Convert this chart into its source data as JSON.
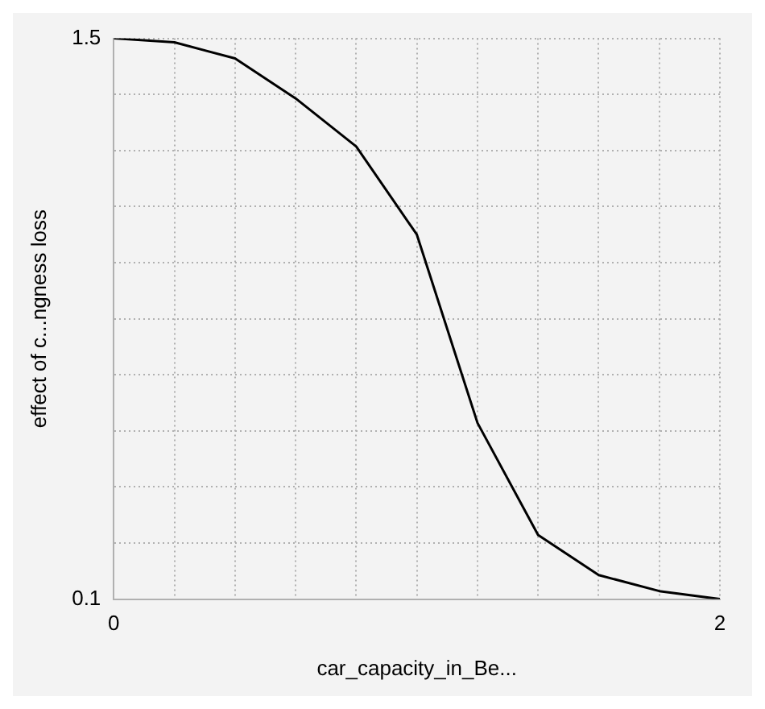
{
  "chart_data": {
    "type": "line",
    "xlabel": "car_capacity_in_Be...",
    "ylabel": "effect of c...ngness loss",
    "x": [
      0,
      0.2,
      0.4,
      0.6,
      0.8,
      1.0,
      1.2,
      1.4,
      1.6,
      1.8,
      2
    ],
    "series": [
      {
        "color": "#000000",
        "values": [
          1.5,
          1.49,
          1.45,
          1.35,
          1.23,
          1.01,
          0.54,
          0.26,
          0.16,
          0.12,
          0.1
        ]
      }
    ],
    "xlim": [
      0,
      2
    ],
    "ylim": [
      0.1,
      1.5
    ],
    "xticks": [
      0,
      {
        "value": 0.2,
        "label": null
      },
      {
        "value": 0.4,
        "label": null
      },
      {
        "value": 0.6,
        "label": null
      },
      {
        "value": 0.8,
        "label": null
      },
      {
        "value": 1,
        "label": null
      },
      {
        "value": 1.2,
        "label": null
      },
      {
        "value": 1.4,
        "label": null
      },
      {
        "value": 1.6,
        "label": null
      },
      {
        "value": 1.8,
        "label": null
      },
      2
    ],
    "yticks": [
      0.1,
      {
        "value": 0.24,
        "label": null
      },
      {
        "value": 0.38,
        "label": null
      },
      {
        "value": 0.52,
        "label": null
      },
      {
        "value": 0.66,
        "label": null
      },
      {
        "value": 0.8,
        "label": null
      },
      {
        "value": 0.94,
        "label": null
      },
      {
        "value": 1.08,
        "label": null
      },
      {
        "value": 1.22,
        "label": null
      },
      {
        "value": 1.36,
        "label": null
      },
      1.5
    ],
    "grid": true,
    "legend": false,
    "marker": "none",
    "line_style": "solid"
  }
}
